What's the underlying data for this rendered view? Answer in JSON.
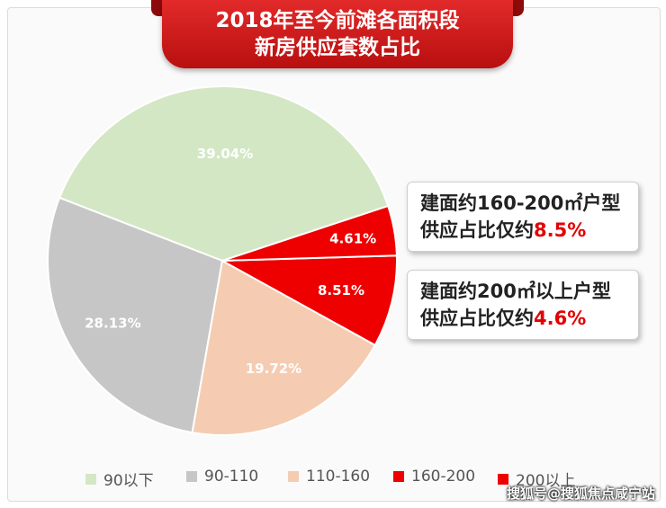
{
  "title": {
    "line1": "2018年至今前滩各面积段",
    "line2": "新房供应套数占比"
  },
  "chart_data": {
    "type": "pie",
    "categories": [
      "90以下",
      "90-110",
      "110-160",
      "160-200",
      "200以上"
    ],
    "values": [
      39.04,
      28.13,
      19.72,
      8.51,
      4.61
    ],
    "labels": [
      "39.04%",
      "28.13%",
      "19.72%",
      "8.51%",
      "4.61%"
    ],
    "colors": [
      "#d3e7c5",
      "#c6c6c6",
      "#f5ccb2",
      "#ee0000",
      "#ee0000"
    ],
    "legend_position": "bottom"
  },
  "callouts": [
    {
      "line1": "建面约160-200㎡户型",
      "line2_prefix": "供应占比仅约",
      "line2_value": "8.5%"
    },
    {
      "line1": "建面约200㎡以上户型",
      "line2_prefix": "供应占比仅约",
      "line2_value": "4.6%"
    }
  ],
  "watermark": "搜狐号@搜狐焦点咸宁站"
}
